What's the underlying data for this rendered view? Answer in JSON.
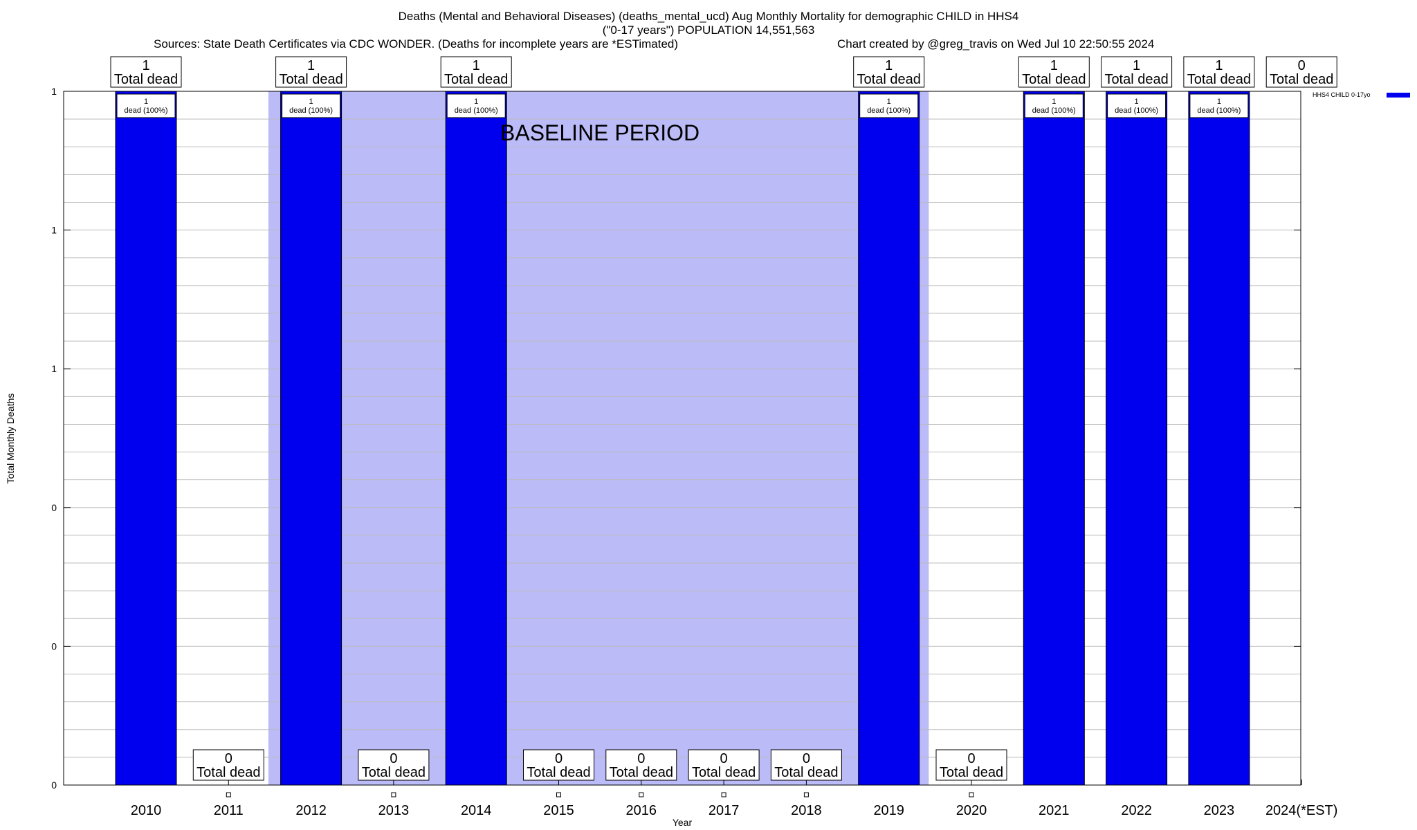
{
  "title_line1": "Deaths (Mental and Behavioral Diseases) (deaths_mental_ucd) Aug Monthly Mortality for demographic CHILD in HHS4",
  "title_line2": "(\"0-17 years\") POPULATION 14,551,563",
  "sources": "Sources: State Death Certificates via CDC WONDER. (Deaths for incomplete years are *ESTimated)",
  "credit": "Chart created by @greg_travis on Wed Jul 10 22:50:55 2024",
  "chart_data": {
    "type": "bar",
    "xlabel": "Year",
    "ylabel": "Total Monthly Deaths",
    "categories": [
      "2010",
      "2011",
      "2012",
      "2013",
      "2014",
      "2015",
      "2016",
      "2017",
      "2018",
      "2019",
      "2020",
      "2021",
      "2022",
      "2023",
      "2024(*EST)"
    ],
    "series": [
      {
        "name": "HHS4 CHILD 0-17yo",
        "color": "#0000ee",
        "values": [
          1,
          0,
          1,
          0,
          1,
          0,
          0,
          0,
          0,
          1,
          0,
          1,
          1,
          1,
          0
        ]
      }
    ],
    "total_labels": [
      "1",
      "0",
      "1",
      "0",
      "1",
      "0",
      "0",
      "0",
      "0",
      "1",
      "0",
      "1",
      "1",
      "1",
      "0"
    ],
    "total_suffix": "Total dead",
    "inner_labels": [
      "dead (100%)",
      "",
      "dead (100%)",
      "",
      "dead (100%)",
      "",
      "",
      "",
      "",
      "dead (100%)",
      "",
      "dead (100%)",
      "dead (100%)",
      "dead (100%)",
      ""
    ],
    "ylim": [
      0,
      1
    ],
    "y_ticks": [
      {
        "value": 0,
        "label": "0"
      },
      {
        "value": 0.2,
        "label": "0"
      },
      {
        "value": 0.4,
        "label": "0"
      },
      {
        "value": 0.6,
        "label": "1"
      },
      {
        "value": 0.8,
        "label": "1"
      },
      {
        "value": 1.0,
        "label": "1"
      }
    ],
    "baseline": {
      "label": "BASELINE PERIOD",
      "start": "2012",
      "end": "2019",
      "color": "#bbbbf8"
    },
    "grid": true,
    "legend_placement": "top-right"
  }
}
